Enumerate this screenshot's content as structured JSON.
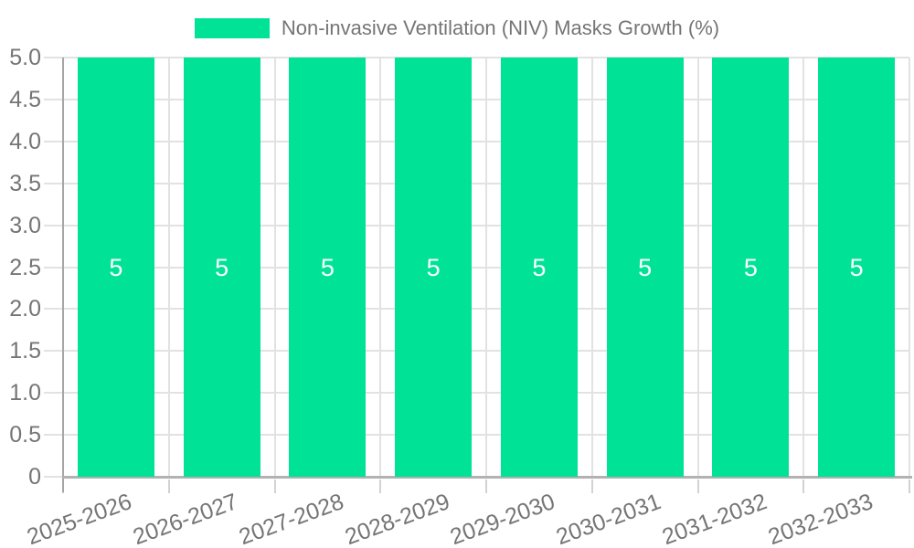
{
  "chart_data": {
    "type": "bar",
    "title": "",
    "legend_position": "top-center",
    "grid": true,
    "x_label_rotation_deg": -20,
    "categories": [
      "2025-2026",
      "2026-2027",
      "2027-2028",
      "2028-2029",
      "2029-2030",
      "2030-2031",
      "2031-2032",
      "2032-2033"
    ],
    "series": [
      {
        "name": "Non-invasive Ventilation (NIV) Masks Growth (%)",
        "values": [
          5,
          5,
          5,
          5,
          5,
          5,
          5,
          5
        ]
      }
    ],
    "data_labels": [
      "5",
      "5",
      "5",
      "5",
      "5",
      "5",
      "5",
      "5"
    ],
    "ylim": [
      0,
      5
    ],
    "ytick_values": [
      0,
      0.5,
      1,
      1.5,
      2,
      2.5,
      3,
      3.5,
      4,
      4.5,
      5
    ],
    "ytick_labels": [
      "0",
      "0.5",
      "1.0",
      "1.5",
      "2.0",
      "2.5",
      "3.0",
      "3.5",
      "4.0",
      "4.5",
      "5.0"
    ],
    "colors": {
      "bar": "#00E396",
      "grid": "#e2e2e2",
      "tick": "#d2d2d2",
      "axis_y": "#a6a6a6",
      "axis_x": "#b2b2b2",
      "tick_text": "#757575",
      "legend_text": "#757575",
      "bar_label_text": "#ffffff",
      "background": "#ffffff"
    }
  }
}
